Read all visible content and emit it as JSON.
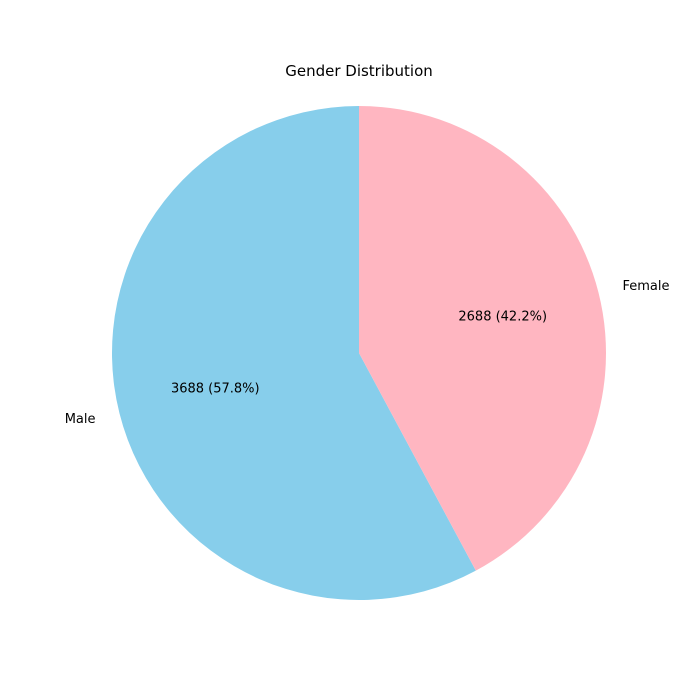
{
  "chart_data": {
    "type": "pie",
    "title": "Gender Distribution",
    "categories": [
      "Male",
      "Female"
    ],
    "values": [
      3688,
      2688
    ],
    "value_labels": [
      "3688 (57.8%)",
      "2688 (42.2%)"
    ],
    "colors": [
      "#87CEEB",
      "#FFB6C1"
    ],
    "start_angle_deg": 90,
    "direction": "counterclockwise"
  }
}
